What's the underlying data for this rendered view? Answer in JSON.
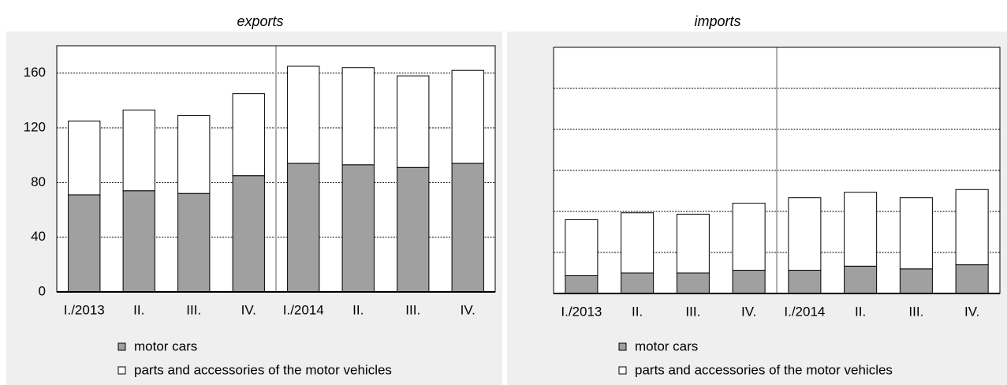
{
  "chart_data": [
    {
      "type": "bar",
      "stacked": true,
      "title": "exports",
      "categories": [
        "I./2013",
        "II.",
        "III.",
        "IV.",
        "I./2014",
        "II.",
        "III.",
        "IV."
      ],
      "series": [
        {
          "name": "motor cars",
          "color": "#a0a0a0",
          "values": [
            71,
            74,
            72,
            85,
            94,
            93,
            91,
            94
          ]
        },
        {
          "name": "parts and accessories of the motor vehicles",
          "color": "#ffffff",
          "values": [
            54,
            59,
            57,
            60,
            71,
            71,
            67,
            68
          ]
        }
      ],
      "ylim": [
        0,
        180
      ],
      "yticks": [
        0,
        40,
        80,
        120,
        160
      ],
      "ytick_labels": true,
      "grid": true
    },
    {
      "type": "bar",
      "stacked": true,
      "title": "imports",
      "categories": [
        "I./2013",
        "II.",
        "III.",
        "IV.",
        "I./2014",
        "II.",
        "III.",
        "IV."
      ],
      "series": [
        {
          "name": "motor cars",
          "color": "#a0a0a0",
          "values": [
            13,
            15,
            15,
            17,
            17,
            20,
            18,
            21
          ]
        },
        {
          "name": "parts and accessories of the motor vehicles",
          "color": "#ffffff",
          "values": [
            41,
            44,
            43,
            49,
            53,
            54,
            52,
            55
          ]
        }
      ],
      "ylim": [
        0,
        180
      ],
      "yticks": [
        0,
        30,
        60,
        90,
        120,
        150,
        180
      ],
      "ytick_labels": false,
      "grid": true
    }
  ]
}
